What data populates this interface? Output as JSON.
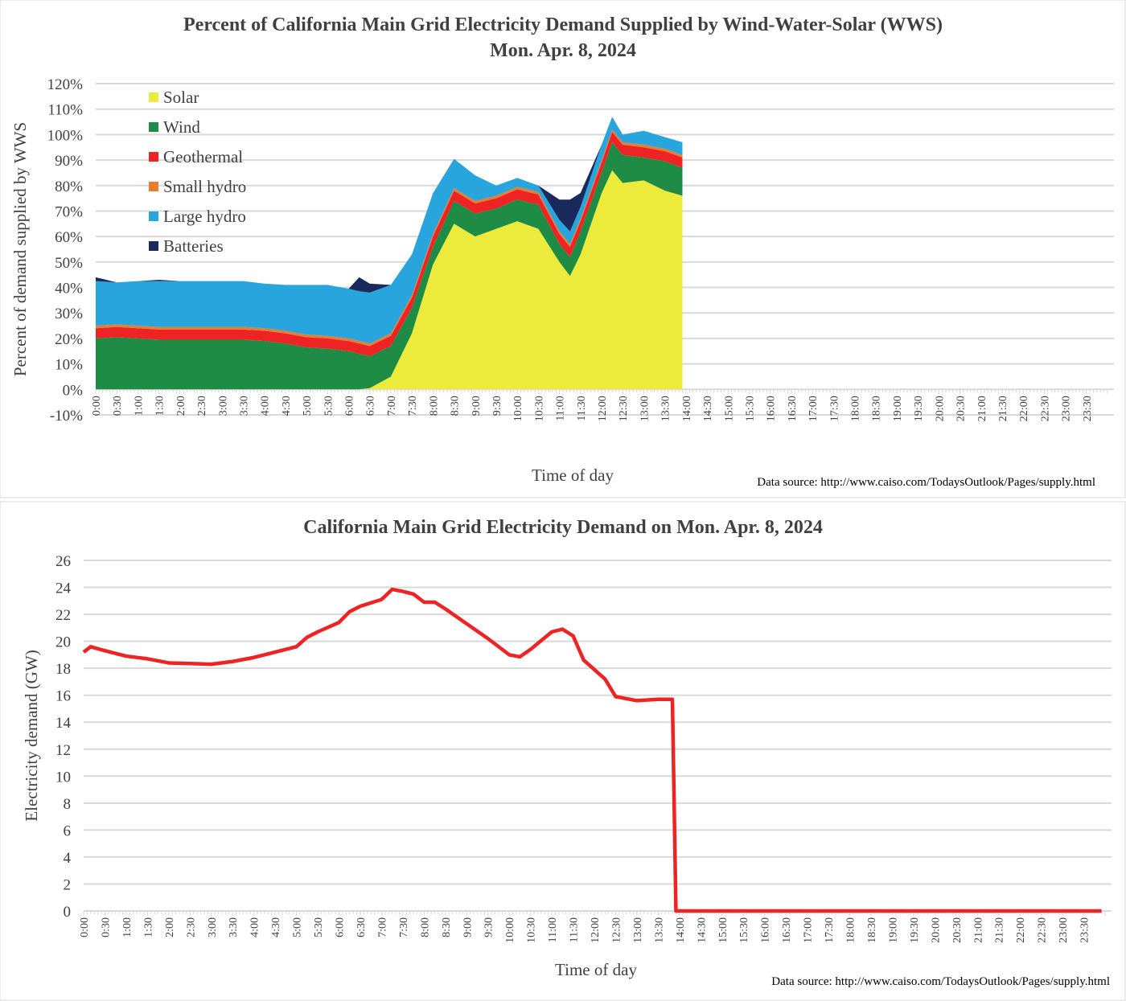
{
  "chart_data": [
    {
      "type": "area",
      "stacked": true,
      "title": "Percent of California Main Grid Electricity Demand Supplied by Wind-Water-Solar (WWS)",
      "subtitle": "Mon. Apr. 8, 2024",
      "xlabel": "Time of day",
      "ylabel": "Percent of demand supplied by WWS",
      "source": "Data source: http://www.caiso.com/TodaysOutlook/Pages/supply.html",
      "ylim": [
        -10,
        120
      ],
      "y_ticks": [
        "120%",
        "110%",
        "100%",
        "90%",
        "80%",
        "70%",
        "60%",
        "50%",
        "40%",
        "30%",
        "20%",
        "10%",
        "0%",
        "-10%"
      ],
      "y_tick_values": [
        120,
        110,
        100,
        90,
        80,
        70,
        60,
        50,
        40,
        30,
        20,
        10,
        0,
        -10
      ],
      "x_tick_labels": [
        "0:00",
        "0:30",
        "1:00",
        "1:30",
        "2:00",
        "2:30",
        "3:00",
        "3:30",
        "4:00",
        "4:30",
        "5:00",
        "5:30",
        "6:00",
        "6:30",
        "7:00",
        "7:30",
        "8:00",
        "8:30",
        "9:00",
        "9:30",
        "10:00",
        "10:30",
        "11:00",
        "11:30",
        "12:00",
        "12:30",
        "13:00",
        "13:30",
        "14:00",
        "14:30",
        "15:00",
        "15:30",
        "16:00",
        "16:30",
        "17:00",
        "17:30",
        "18:00",
        "18:30",
        "19:00",
        "19:30",
        "20:00",
        "20:30",
        "21:00",
        "21:30",
        "22:00",
        "22:30",
        "23:00",
        "23:30"
      ],
      "grid": true,
      "legend": "top-left",
      "x": [
        "0:00",
        "0:30",
        "1:00",
        "1:30",
        "2:00",
        "2:30",
        "3:00",
        "3:30",
        "4:00",
        "4:30",
        "5:00",
        "5:30",
        "6:00",
        "6:15",
        "6:30",
        "7:00",
        "7:30",
        "8:00",
        "8:30",
        "9:00",
        "9:30",
        "10:00",
        "10:30",
        "11:00",
        "11:15",
        "11:30",
        "12:00",
        "12:15",
        "12:30",
        "13:00",
        "13:30",
        "13:55"
      ],
      "series": [
        {
          "name": "Solar",
          "color": "#ecea3a",
          "values": [
            0,
            0,
            0,
            0,
            0,
            0,
            0,
            0,
            0,
            0,
            0,
            0,
            0,
            0,
            0.5,
            5,
            22,
            49,
            65,
            60,
            63,
            66,
            63,
            50,
            44.5,
            53,
            77,
            86,
            81,
            82,
            78,
            76
          ]
        },
        {
          "name": "Wind",
          "color": "#1e8c45",
          "values": [
            20,
            20.5,
            20,
            19.5,
            19.5,
            19.5,
            19.5,
            19.5,
            19,
            18,
            16.5,
            16,
            15,
            14,
            12.5,
            12,
            10,
            7,
            9,
            9,
            8,
            8.5,
            9.5,
            7,
            7.5,
            9,
            8,
            11,
            11,
            9,
            11.5,
            11
          ]
        },
        {
          "name": "Geothermal",
          "color": "#ee2424",
          "values": [
            4,
            4,
            4,
            4,
            4,
            4,
            4,
            4,
            4,
            4,
            4,
            4,
            4,
            4,
            4,
            4,
            4,
            4,
            4,
            4,
            4,
            4,
            4,
            4,
            4,
            4,
            4,
            4,
            4,
            4,
            4,
            4
          ]
        },
        {
          "name": "Small hydro",
          "color": "#e87d2f",
          "values": [
            1,
            1,
            1,
            1,
            1,
            1,
            1,
            1,
            1,
            1,
            1,
            1,
            1,
            1,
            1,
            1,
            1,
            1,
            1,
            1,
            1,
            1,
            1,
            1,
            1,
            1,
            1,
            1,
            1,
            1,
            1,
            1
          ]
        },
        {
          "name": "Large hydro",
          "color": "#27a5dc",
          "values": [
            17.5,
            16.5,
            17.5,
            18,
            18,
            18,
            18,
            18,
            17.5,
            18,
            19.5,
            20,
            19.5,
            19.5,
            20,
            19,
            16,
            16,
            11.5,
            10,
            4,
            3.5,
            2.5,
            4.5,
            5,
            4.6,
            6,
            5,
            3,
            5.5,
            4.5,
            5
          ]
        },
        {
          "name": "Batteries",
          "color": "#1b2a5c",
          "values": [
            1.5,
            0,
            0,
            0.5,
            0,
            0,
            0,
            0,
            0,
            0,
            0,
            0,
            0,
            5.5,
            3.5,
            0,
            0,
            0,
            0,
            0,
            0,
            0,
            0,
            8,
            12.5,
            5.5,
            0,
            0,
            0,
            0,
            0,
            0
          ]
        }
      ]
    },
    {
      "type": "line",
      "title": "California Main Grid Electricity Demand on Mon. Apr. 8, 2024",
      "xlabel": "Time of day",
      "ylabel": "Electricity demand (GW)",
      "source": "Data source: http://www.caiso.com/TodaysOutlook/Pages/supply.html",
      "ylim": [
        0,
        26
      ],
      "y_ticks": [
        "26",
        "24",
        "22",
        "20",
        "18",
        "16",
        "14",
        "12",
        "10",
        "8",
        "6",
        "4",
        "2",
        "0"
      ],
      "y_tick_values": [
        26,
        24,
        22,
        20,
        18,
        16,
        14,
        12,
        10,
        8,
        6,
        4,
        2,
        0
      ],
      "x_tick_labels": [
        "0:00",
        "0:30",
        "1:00",
        "1:30",
        "2:00",
        "2:30",
        "3:00",
        "3:30",
        "4:00",
        "4:30",
        "5:00",
        "5:30",
        "6:00",
        "6:30",
        "7:00",
        "7:30",
        "8:00",
        "8:30",
        "9:00",
        "9:30",
        "10:00",
        "10:30",
        "11:00",
        "11:30",
        "12:00",
        "12:30",
        "13:00",
        "13:30",
        "14:00",
        "14:30",
        "15:00",
        "15:30",
        "16:00",
        "16:30",
        "17:00",
        "17:30",
        "18:00",
        "18:30",
        "19:00",
        "19:30",
        "20:00",
        "20:30",
        "21:00",
        "21:30",
        "22:00",
        "22:30",
        "23:00",
        "23:30"
      ],
      "grid": true,
      "color": "#ee2424",
      "x": [
        "0:00",
        "0:10",
        "0:30",
        "1:00",
        "1:30",
        "2:00",
        "2:30",
        "3:00",
        "3:30",
        "4:00",
        "4:30",
        "5:00",
        "5:15",
        "5:30",
        "6:00",
        "6:15",
        "6:30",
        "7:00",
        "7:15",
        "7:30",
        "7:45",
        "8:00",
        "8:15",
        "8:30",
        "9:00",
        "9:30",
        "10:00",
        "10:15",
        "10:30",
        "11:00",
        "11:15",
        "11:30",
        "11:45",
        "12:15",
        "12:30",
        "13:00",
        "13:30",
        "13:50",
        "13:55",
        "23:55"
      ],
      "values": [
        19.2,
        19.6,
        19.3,
        18.9,
        18.7,
        18.4,
        18.35,
        18.3,
        18.5,
        18.8,
        19.2,
        19.6,
        20.3,
        20.7,
        21.4,
        22.2,
        22.6,
        23.1,
        23.85,
        23.7,
        23.5,
        22.9,
        22.9,
        22.4,
        21.3,
        20.2,
        19.0,
        18.85,
        19.4,
        20.7,
        20.9,
        20.4,
        18.6,
        17.2,
        15.9,
        15.6,
        15.7,
        15.7,
        0,
        0
      ]
    }
  ]
}
